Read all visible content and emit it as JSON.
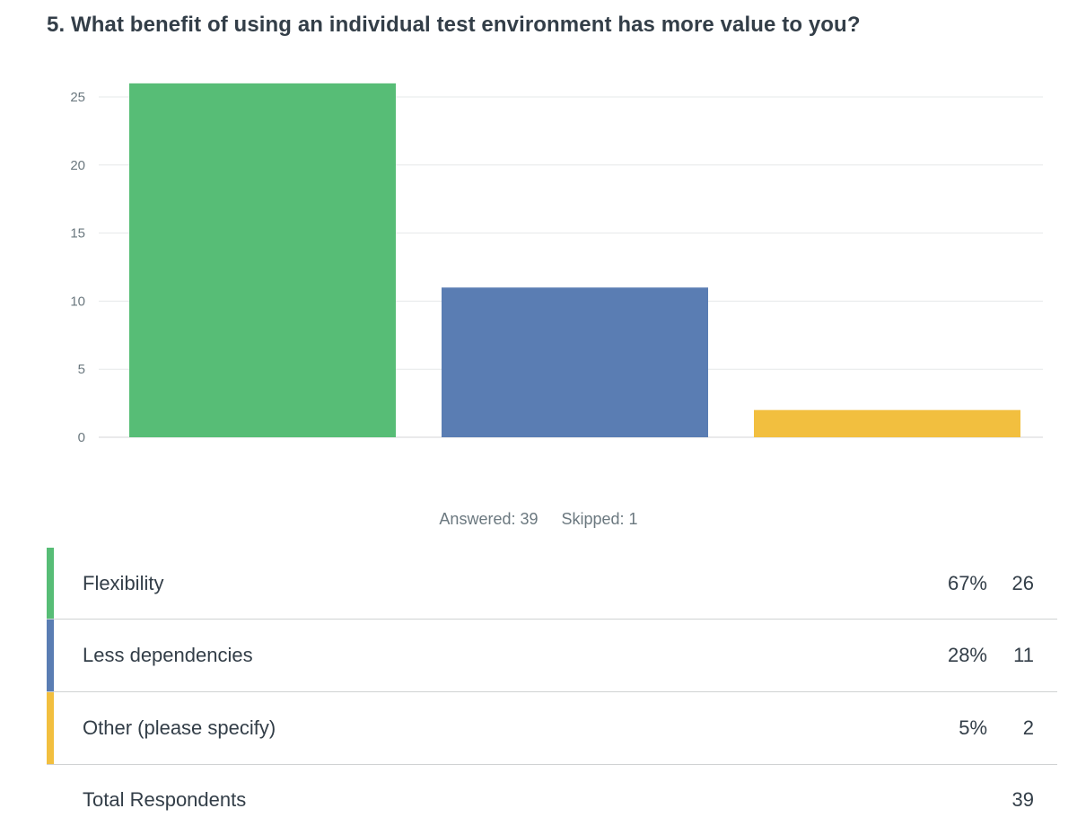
{
  "question": {
    "title": "5. What benefit of using an individual test environment has more value to you?"
  },
  "chart_data": {
    "type": "bar",
    "categories": [
      "Flexibility",
      "Less dependencies",
      "Other (please specify)"
    ],
    "values": [
      26,
      11,
      2
    ],
    "colors": [
      "#57bd76",
      "#5a7db3",
      "#f2bf3f"
    ],
    "ylim": [
      0,
      26
    ],
    "yticks": [
      0,
      5,
      10,
      15,
      20,
      25
    ],
    "grid": true,
    "xlabel": "",
    "ylabel": ""
  },
  "summary": {
    "answered": "Answered: 39",
    "skipped": "Skipped: 1"
  },
  "table": {
    "rows": [
      {
        "label": "Flexibility",
        "percent": "67%",
        "count": "26",
        "color": "#57bd76"
      },
      {
        "label": "Less dependencies",
        "percent": "28%",
        "count": "11",
        "color": "#5a7db3"
      },
      {
        "label": "Other (please specify)",
        "percent": "5%",
        "count": "2",
        "color": "#f2bf3f"
      }
    ],
    "total_label": "Total Respondents",
    "total_count": "39"
  }
}
